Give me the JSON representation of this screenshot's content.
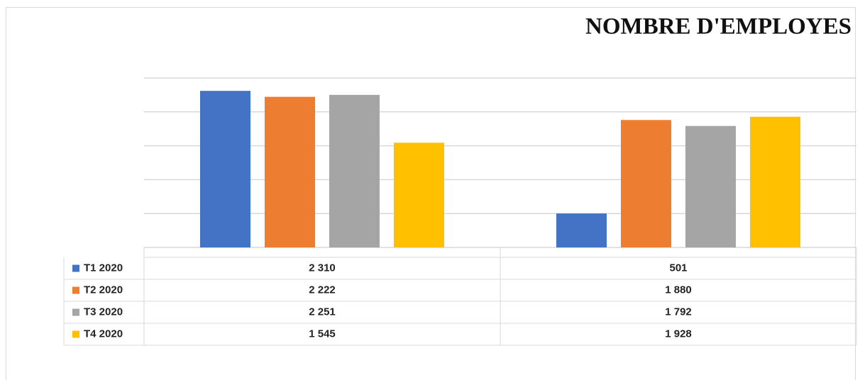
{
  "chart_data": {
    "type": "bar",
    "title": "NOMBRE D'EMPLOYES",
    "categories": [
      null,
      null
    ],
    "series": [
      {
        "name": "T1 2020",
        "color": "#4472c4",
        "values": [
          2310,
          501
        ],
        "value_labels": [
          "2 310",
          "501"
        ]
      },
      {
        "name": "T2 2020",
        "color": "#ed7d31",
        "values": [
          2222,
          1880
        ],
        "value_labels": [
          "2 222",
          "1 880"
        ]
      },
      {
        "name": "T3 2020",
        "color": "#a5a5a5",
        "values": [
          2251,
          1792
        ],
        "value_labels": [
          "2 251",
          "1 792"
        ]
      },
      {
        "name": "T4 2020",
        "color": "#ffc000",
        "values": [
          1545,
          1928
        ],
        "value_labels": [
          "1 545",
          "1 928"
        ]
      }
    ],
    "ylim": [
      0,
      2500
    ],
    "yticks": [
      0,
      500,
      1000,
      1500,
      2000,
      2500
    ],
    "grid": true
  }
}
